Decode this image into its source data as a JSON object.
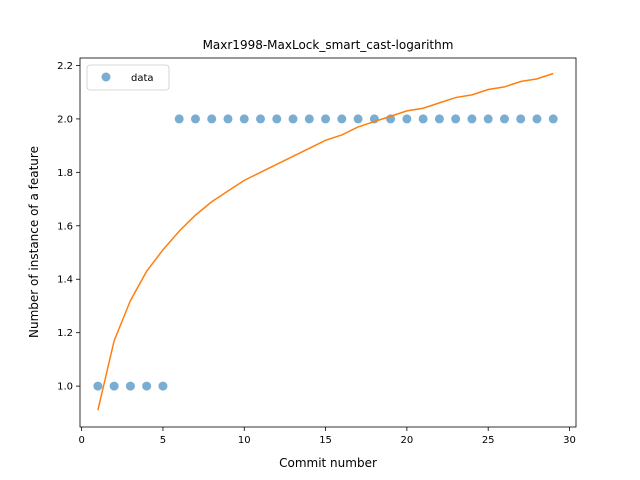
{
  "chart_data": {
    "type": "scatter",
    "title": "Maxr1998-MaxLock_smart_cast-logarithm",
    "xlabel": "Commit number",
    "ylabel": "Number of instance of a feature",
    "xlim": [
      -0.1,
      30.4
    ],
    "ylim": [
      0.847,
      2.228
    ],
    "xticks": [
      0,
      5,
      10,
      15,
      20,
      25,
      30
    ],
    "yticks": [
      1.0,
      1.2,
      1.4,
      1.6,
      1.8,
      2.0,
      2.2
    ],
    "xtick_labels": [
      "0",
      "5",
      "10",
      "15",
      "20",
      "25",
      "30"
    ],
    "ytick_labels": [
      "1.0",
      "1.2",
      "1.4",
      "1.6",
      "1.8",
      "2.0",
      "2.2"
    ],
    "legend_position": "top-left",
    "grid": false,
    "series": [
      {
        "name": "data",
        "kind": "scatter",
        "color": "#1f77b4",
        "x": [
          1,
          2,
          3,
          4,
          5,
          6,
          7,
          8,
          9,
          10,
          11,
          12,
          13,
          14,
          15,
          16,
          17,
          18,
          19,
          20,
          21,
          22,
          23,
          24,
          25,
          26,
          27,
          28,
          29
        ],
        "y": [
          1,
          1,
          1,
          1,
          1,
          2,
          2,
          2,
          2,
          2,
          2,
          2,
          2,
          2,
          2,
          2,
          2,
          2,
          2,
          2,
          2,
          2,
          2,
          2,
          2,
          2,
          2,
          2,
          2
        ]
      },
      {
        "kind": "line",
        "color": "#ff7f0e",
        "x": [
          1,
          2,
          3,
          4,
          5,
          6,
          7,
          8,
          9,
          10,
          11,
          12,
          13,
          14,
          15,
          16,
          17,
          18,
          19,
          20,
          21,
          22,
          23,
          24,
          25,
          26,
          27,
          28,
          29
        ],
        "y": [
          0.91,
          1.17,
          1.32,
          1.43,
          1.51,
          1.58,
          1.64,
          1.69,
          1.73,
          1.77,
          1.8,
          1.83,
          1.86,
          1.89,
          1.92,
          1.94,
          1.97,
          1.99,
          2.01,
          2.03,
          2.04,
          2.06,
          2.08,
          2.09,
          2.11,
          2.12,
          2.14,
          2.15,
          2.17
        ]
      }
    ]
  }
}
